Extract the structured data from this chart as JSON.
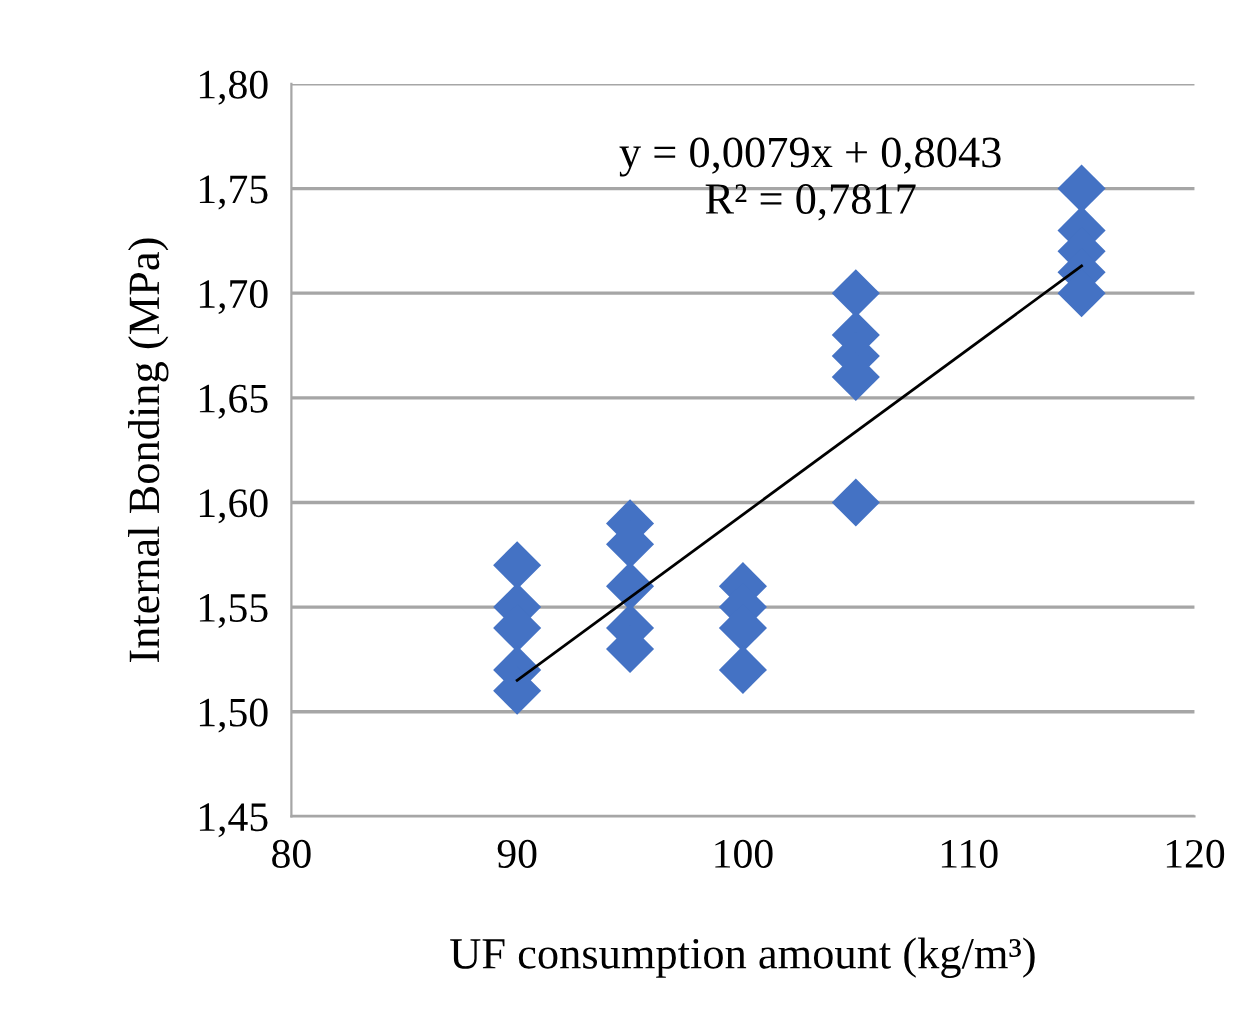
{
  "chart_data": {
    "type": "scatter",
    "xlabel": "UF consumption amount (kg/m³)",
    "ylabel": "Internal Bonding (MPa)",
    "xlim": [
      80,
      120
    ],
    "xticks": [
      80,
      90,
      100,
      110,
      120
    ],
    "ylim": [
      1.45,
      1.8
    ],
    "yticks": [
      {
        "value": 1.45,
        "label": "1,45"
      },
      {
        "value": 1.5,
        "label": "1,50"
      },
      {
        "value": 1.55,
        "label": "1,55"
      },
      {
        "value": 1.6,
        "label": "1,60"
      },
      {
        "value": 1.65,
        "label": "1,65"
      },
      {
        "value": 1.7,
        "label": "1,70"
      },
      {
        "value": 1.75,
        "label": "1,75"
      },
      {
        "value": 1.8,
        "label": "1,80"
      }
    ],
    "grid": "y",
    "marker": "diamond",
    "legend": false,
    "annotations": [
      "y = 0,0079x + 0,8043\nR² = 0,7817"
    ],
    "series": [
      {
        "color": "#4472c4",
        "x": [
          90,
          90,
          90,
          90,
          90,
          95,
          95,
          95,
          95,
          95,
          100,
          100,
          100,
          100,
          105,
          105,
          105,
          105,
          105,
          115,
          115,
          115,
          115,
          115
        ],
        "values": [
          1.57,
          1.55,
          1.54,
          1.52,
          1.51,
          1.59,
          1.58,
          1.56,
          1.54,
          1.53,
          1.56,
          1.55,
          1.54,
          1.52,
          1.7,
          1.68,
          1.67,
          1.66,
          1.6,
          1.75,
          1.73,
          1.72,
          1.71,
          1.7
        ]
      },
      {
        "type": "line",
        "color": "#000000",
        "x": [
          90,
          115
        ],
        "values": [
          1.515,
          1.713
        ],
        "marker": "none",
        "line_style": "solid"
      }
    ]
  }
}
